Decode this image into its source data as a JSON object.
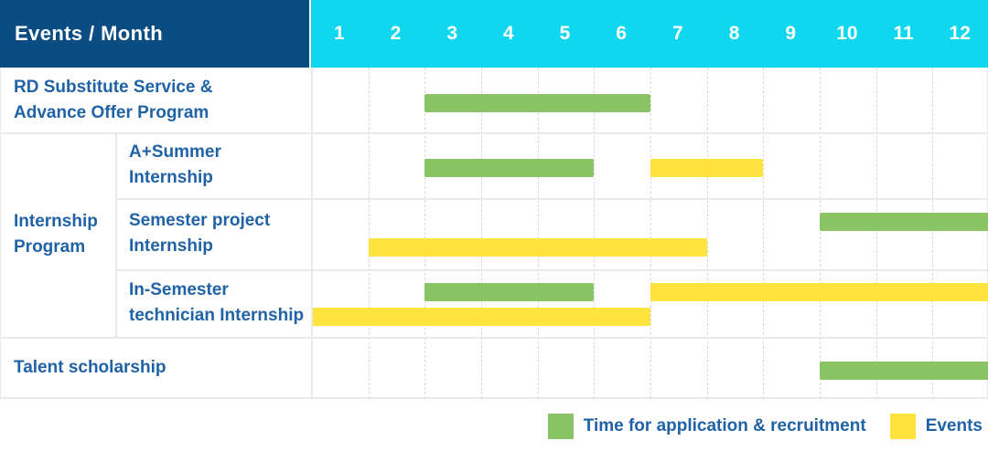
{
  "header": {
    "title": "Events / Month"
  },
  "colors": {
    "header_bg": "#0b4d82",
    "months_bg": "#0fd7ef",
    "header_text": "#ffffff",
    "label_text": "#2062a6",
    "recruitment": "#8bc464",
    "event": "#ffe33e",
    "grid_line": "#e9e9e9",
    "grid_dash": "#d9d9d9"
  },
  "legend": {
    "recruitment_label": "Time for application & recruitment",
    "events_label": "Events"
  },
  "chart_data": {
    "type": "gantt",
    "title": "Events / Month",
    "x_unit": "month",
    "x_ticks": [
      "1",
      "2",
      "3",
      "4",
      "5",
      "6",
      "7",
      "8",
      "9",
      "10",
      "11",
      "12"
    ],
    "x_range": [
      1,
      12
    ],
    "grid": "dashed-vertical",
    "legend_position": "bottom-right",
    "group_label": {
      "text": "Internship Program",
      "lines": [
        "Internship",
        "Program"
      ]
    },
    "rows": [
      {
        "label": "RD Substitute Service & Advance Offer Program",
        "label_lines": [
          "RD Substitute Service &",
          "Advance Offer Program"
        ],
        "group": null,
        "tracks": 1,
        "bars": [
          {
            "type": "recruitment",
            "start_month": 3,
            "end_month": 6,
            "track": 0
          }
        ]
      },
      {
        "label": "A+Summer Internship",
        "label_lines": [
          "A+Summer",
          "Internship"
        ],
        "group": "Internship Program",
        "tracks": 1,
        "bars": [
          {
            "type": "recruitment",
            "start_month": 3,
            "end_month": 5,
            "track": 0
          },
          {
            "type": "event",
            "start_month": 7,
            "end_month": 8,
            "track": 0
          }
        ]
      },
      {
        "label": "Semester project Internship",
        "label_lines": [
          "Semester project",
          "Internship"
        ],
        "group": "Internship Program",
        "tracks": 2,
        "bars": [
          {
            "type": "recruitment",
            "start_month": 10,
            "end_month": 12,
            "track": 0
          },
          {
            "type": "event",
            "start_month": 2,
            "end_month": 7,
            "track": 1
          }
        ]
      },
      {
        "label": "In-Semester technician Internship",
        "label_lines": [
          "In-Semester",
          "technician Internship"
        ],
        "group": "Internship Program",
        "tracks": 2,
        "bars": [
          {
            "type": "recruitment",
            "start_month": 3,
            "end_month": 5,
            "track": 0
          },
          {
            "type": "event",
            "start_month": 7,
            "end_month": 12,
            "track": 0
          },
          {
            "type": "event",
            "start_month": 1,
            "end_month": 6,
            "track": 1
          }
        ]
      },
      {
        "label": "Talent scholarship",
        "label_lines": [
          "Talent scholarship"
        ],
        "group": null,
        "tracks": 1,
        "bars": [
          {
            "type": "recruitment",
            "start_month": 10,
            "end_month": 12,
            "track": 0
          }
        ]
      }
    ],
    "legend_entries": [
      {
        "label": "Time for application & recruitment",
        "type": "recruitment",
        "color": "#8bc464"
      },
      {
        "label": "Events",
        "type": "event",
        "color": "#ffe33e"
      }
    ]
  }
}
